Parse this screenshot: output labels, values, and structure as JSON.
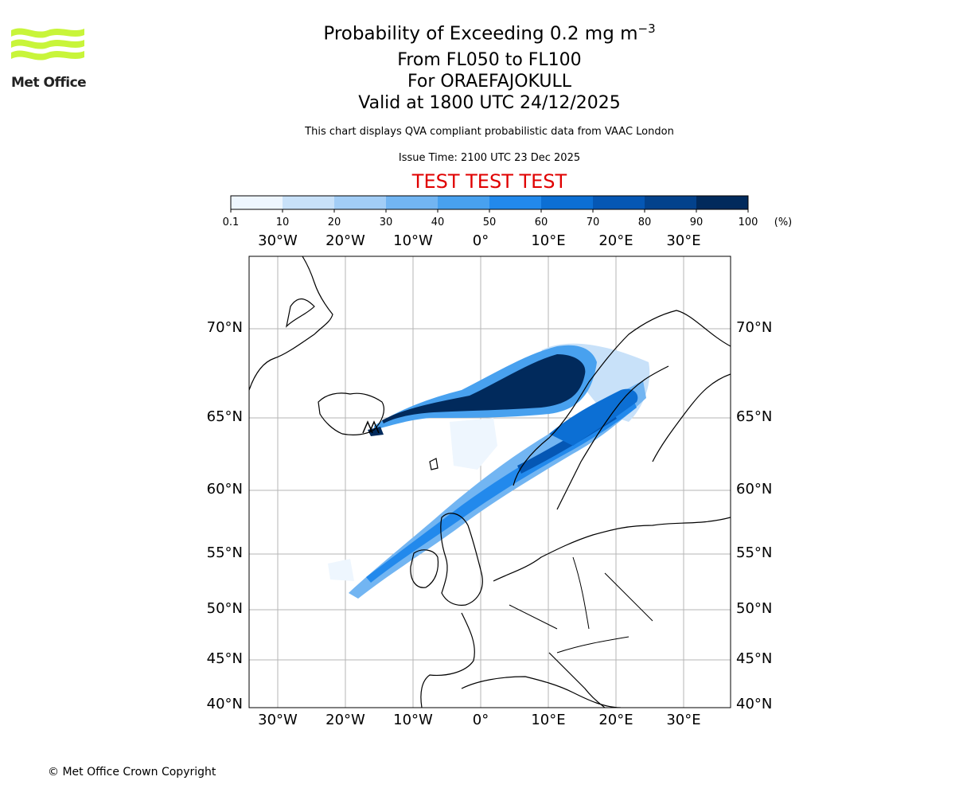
{
  "logo": {
    "text": "Met Office",
    "color": "#c8f53a"
  },
  "header": {
    "title_main": "Probability of Exceeding 0.2 mg m",
    "title_sup": "−3",
    "flight_levels": "From FL050 to FL100",
    "volcano": "For ORAEFAJOKULL",
    "valid_time": "Valid at 1800 UTC 24/12/2025",
    "description": "This chart displays QVA compliant probabilistic data from VAAC London",
    "issue_time": "Issue Time: 2100 UTC 23 Dec 2025",
    "test_banner": "TEST TEST TEST"
  },
  "colorbar": {
    "ticks": [
      "0.1",
      "10",
      "20",
      "30",
      "40",
      "50",
      "60",
      "70",
      "80",
      "90",
      "100"
    ],
    "unit": "(%)",
    "colors": [
      "#eef6fe",
      "#c8e1f9",
      "#a2cdf6",
      "#72b5f2",
      "#48a1ef",
      "#2289ec",
      "#0c6fd4",
      "#0557b4",
      "#03428c",
      "#012a5c"
    ]
  },
  "map": {
    "lon_labels": [
      "30°W",
      "20°W",
      "10°W",
      "0°",
      "10°E",
      "20°E",
      "30°E"
    ],
    "lat_labels": [
      "70°N",
      "65°N",
      "60°N",
      "55°N",
      "50°N",
      "45°N",
      "40°N"
    ],
    "volcano_icon": "volcano-marker-icon"
  },
  "footer": {
    "copyright": "© Met Office Crown Copyright"
  }
}
